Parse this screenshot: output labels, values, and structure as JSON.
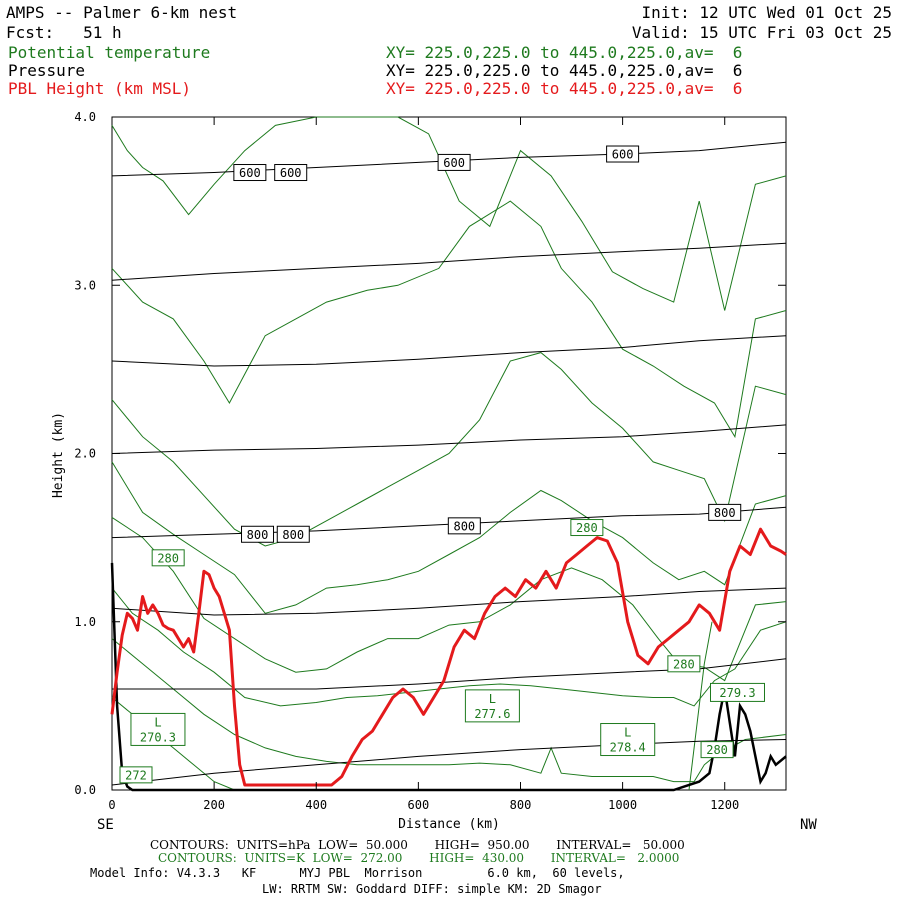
{
  "header": {
    "title": "AMPS -- Palmer 6-km nest",
    "forecast": "Fcst:   51 h",
    "init": "Init: 12 UTC Wed 01 Oct 25",
    "valid": "Valid: 15 UTC Fri 03 Oct 25",
    "fields": [
      {
        "name": "Potential temperature",
        "xy": "XY= 225.0,225.0 to 445.0,225.0,av=  6",
        "color": "#1e7a1e"
      },
      {
        "name": "Pressure",
        "xy": "XY= 225.0,225.0 to 445.0,225.0,av=  6",
        "color": "#000000"
      },
      {
        "name": "PBL Height (km MSL)",
        "xy": "XY= 225.0,225.0 to 445.0,225.0,av=  6",
        "color": "#e41a1c"
      }
    ]
  },
  "footer": {
    "line1": "CONTOURS:  UNITS=hPa  LOW=  50.000       HIGH=  950.00       INTERVAL=   50.000",
    "line2": "CONTOURS:  UNITS=K  LOW=  272.00       HIGH=  430.00       INTERVAL=   2.0000",
    "line3": "Model Info: V4.3.3   KF      MYJ PBL  Morrison         6.0 km,  60 levels,",
    "line4": "LW: RRTM SW: Goddard DIFF: simple KM: 2D Smagor"
  },
  "chart_data": {
    "type": "line",
    "xlabel": "Distance (km)",
    "ylabel": "Height (km)",
    "xlim": [
      0,
      1320
    ],
    "ylim": [
      0.0,
      4.0
    ],
    "x_ticks": [
      0,
      200,
      400,
      600,
      800,
      1000,
      1200
    ],
    "x_tick_labels": [
      "0",
      "200",
      "400",
      "600",
      "800",
      "1000",
      "1200"
    ],
    "y_ticks": [
      0.0,
      1.0,
      2.0,
      3.0,
      4.0
    ],
    "y_tick_labels": [
      "0.0",
      "1.0",
      "2.0",
      "3.0",
      "4.0"
    ],
    "left_end_label": "SE",
    "right_end_label": "NW",
    "colors": {
      "pressure": "#000000",
      "theta": "#1e7a1e",
      "pbl": "#e41a1c",
      "terrain": "#000000"
    },
    "pressure_isobars": [
      {
        "x": [
          0,
          200,
          400,
          600,
          800,
          1000,
          1150,
          1320
        ],
        "y": [
          0.03,
          0.1,
          0.15,
          0.2,
          0.24,
          0.27,
          0.29,
          0.3
        ]
      },
      {
        "x": [
          0,
          200,
          400,
          600,
          800,
          1000,
          1150,
          1320
        ],
        "y": [
          0.6,
          0.6,
          0.6,
          0.63,
          0.67,
          0.7,
          0.72,
          0.78
        ]
      },
      {
        "x": [
          0,
          200,
          400,
          600,
          800,
          1000,
          1150,
          1320
        ],
        "y": [
          1.08,
          1.04,
          1.05,
          1.08,
          1.12,
          1.15,
          1.18,
          1.2
        ]
      },
      {
        "x": [
          0,
          200,
          400,
          600,
          800,
          1000,
          1150,
          1320
        ],
        "y": [
          1.5,
          1.52,
          1.54,
          1.57,
          1.6,
          1.63,
          1.64,
          1.68
        ]
      },
      {
        "x": [
          0,
          200,
          400,
          600,
          800,
          1000,
          1150,
          1320
        ],
        "y": [
          2.0,
          2.02,
          2.03,
          2.05,
          2.08,
          2.1,
          2.13,
          2.17
        ]
      },
      {
        "x": [
          0,
          200,
          400,
          600,
          800,
          1000,
          1150,
          1320
        ],
        "y": [
          2.55,
          2.52,
          2.53,
          2.56,
          2.6,
          2.63,
          2.67,
          2.7
        ]
      },
      {
        "x": [
          0,
          200,
          400,
          600,
          800,
          1000,
          1150,
          1320
        ],
        "y": [
          3.03,
          3.07,
          3.1,
          3.13,
          3.17,
          3.2,
          3.22,
          3.25
        ]
      },
      {
        "x": [
          0,
          200,
          400,
          600,
          800,
          1000,
          1150,
          1320
        ],
        "y": [
          3.65,
          3.67,
          3.7,
          3.73,
          3.76,
          3.78,
          3.8,
          3.85
        ]
      }
    ],
    "pressure_labels": [
      {
        "text": "600",
        "x": 270,
        "y": 3.67
      },
      {
        "text": "600",
        "x": 350,
        "y": 3.67
      },
      {
        "text": "600",
        "x": 670,
        "y": 3.73
      },
      {
        "text": "600",
        "x": 1000,
        "y": 3.78
      },
      {
        "text": "800",
        "x": 285,
        "y": 1.52
      },
      {
        "text": "800",
        "x": 355,
        "y": 1.52
      },
      {
        "text": "800",
        "x": 690,
        "y": 1.57
      },
      {
        "text": "800",
        "x": 1200,
        "y": 1.65
      }
    ],
    "theta_isentropes": [
      {
        "x": [
          0,
          30,
          60,
          100,
          150,
          200,
          260,
          320,
          400,
          480,
          560,
          620,
          680,
          740,
          800,
          860,
          920,
          980,
          1040,
          1100,
          1150,
          1200,
          1260,
          1320
        ],
        "y": [
          3.95,
          3.8,
          3.7,
          3.62,
          3.42,
          3.6,
          3.8,
          3.95,
          4.0,
          4.0,
          4.0,
          3.9,
          3.5,
          3.35,
          3.8,
          3.65,
          3.38,
          3.08,
          2.98,
          2.9,
          3.5,
          2.85,
          3.6,
          3.65
        ]
      },
      {
        "x": [
          0,
          60,
          120,
          180,
          230,
          300,
          360,
          420,
          500,
          560,
          640,
          700,
          780,
          840,
          880,
          940,
          1000,
          1060,
          1120,
          1180,
          1220,
          1260,
          1320
        ],
        "y": [
          3.1,
          2.9,
          2.8,
          2.55,
          2.3,
          2.7,
          2.8,
          2.9,
          2.97,
          3.0,
          3.1,
          3.35,
          3.5,
          3.35,
          3.1,
          2.9,
          2.62,
          2.52,
          2.4,
          2.3,
          2.1,
          2.8,
          2.85
        ]
      },
      {
        "x": [
          0,
          60,
          120,
          180,
          240,
          300,
          360,
          420,
          480,
          540,
          600,
          660,
          720,
          780,
          840,
          880,
          940,
          1000,
          1060,
          1110,
          1160,
          1200,
          1260,
          1320
        ],
        "y": [
          2.32,
          2.1,
          1.95,
          1.75,
          1.55,
          1.45,
          1.5,
          1.6,
          1.7,
          1.8,
          1.9,
          2.0,
          2.2,
          2.55,
          2.6,
          2.5,
          2.3,
          2.15,
          1.95,
          1.9,
          1.85,
          1.6,
          2.4,
          2.35
        ]
      },
      {
        "x": [
          0,
          60,
          120,
          180,
          240,
          300,
          360,
          420,
          480,
          540,
          600,
          660,
          720,
          780,
          840,
          880,
          940,
          1000,
          1060,
          1110,
          1160,
          1200,
          1260,
          1320
        ],
        "y": [
          1.95,
          1.65,
          1.52,
          1.4,
          1.28,
          1.05,
          1.1,
          1.2,
          1.22,
          1.25,
          1.3,
          1.4,
          1.5,
          1.65,
          1.78,
          1.72,
          1.6,
          1.5,
          1.35,
          1.25,
          1.3,
          1.22,
          1.7,
          1.75
        ]
      },
      {
        "x": [
          0,
          60,
          120,
          180,
          240,
          300,
          360,
          420,
          480,
          540,
          600,
          660,
          720,
          780,
          840,
          900,
          960,
          1020,
          1070,
          1110,
          1160,
          1200,
          1260,
          1320
        ],
        "y": [
          1.62,
          1.5,
          1.3,
          1.02,
          0.9,
          0.78,
          0.7,
          0.72,
          0.82,
          0.9,
          0.9,
          0.98,
          1.0,
          1.1,
          1.25,
          1.32,
          1.25,
          1.1,
          0.9,
          0.75,
          0.73,
          0.65,
          1.1,
          1.12
        ]
      },
      {
        "x": [
          0,
          40,
          90,
          140,
          200,
          260,
          330,
          400,
          460,
          520,
          580,
          640,
          700,
          760,
          820,
          880,
          940,
          1000,
          1060,
          1100,
          1140,
          1180,
          1220,
          1270,
          1320
        ],
        "y": [
          1.2,
          1.05,
          0.95,
          0.82,
          0.7,
          0.55,
          0.5,
          0.52,
          0.55,
          0.56,
          0.58,
          0.6,
          0.62,
          0.63,
          0.62,
          0.6,
          0.58,
          0.56,
          0.55,
          0.55,
          0.5,
          0.65,
          0.72,
          0.95,
          1.0
        ]
      },
      {
        "x": [
          0,
          60,
          120,
          180,
          240,
          300,
          360,
          420,
          480,
          540,
          600,
          660,
          720,
          780,
          840,
          860,
          880,
          940,
          1000,
          1060,
          1100,
          1140,
          1160,
          1180,
          1240,
          1320
        ],
        "y": [
          0.9,
          0.75,
          0.6,
          0.45,
          0.33,
          0.25,
          0.2,
          0.17,
          0.15,
          0.15,
          0.15,
          0.15,
          0.16,
          0.15,
          0.1,
          0.25,
          0.1,
          0.08,
          0.08,
          0.08,
          0.05,
          0.05,
          0.15,
          0.2,
          0.3,
          0.33
        ]
      },
      {
        "x": [
          0,
          40,
          80,
          120,
          160,
          200,
          240
        ],
        "y": [
          0.55,
          0.45,
          0.35,
          0.25,
          0.15,
          0.05,
          0.0
        ]
      },
      {
        "x": [
          1130,
          1140,
          1150,
          1160,
          1175
        ],
        "y": [
          0.0,
          0.25,
          0.5,
          0.75,
          1.0
        ]
      }
    ],
    "theta_labels": [
      {
        "text": "280",
        "x": 110,
        "y": 1.38
      },
      {
        "text": "280",
        "x": 930,
        "y": 1.56
      },
      {
        "text": "280",
        "x": 1120,
        "y": 0.75
      },
      {
        "text": "280",
        "x": 1185,
        "y": 0.24
      },
      {
        "text": "272",
        "x": 47,
        "y": 0.09
      }
    ],
    "low_centers": [
      {
        "text": "L",
        "value": "270.3",
        "x": 90,
        "y": 0.36
      },
      {
        "text": "L",
        "value": "277.6",
        "x": 745,
        "y": 0.5
      },
      {
        "text": "L",
        "value": "278.4",
        "x": 1010,
        "y": 0.3
      },
      {
        "text": "",
        "value": "279.3",
        "x": 1225,
        "y": 0.58
      }
    ],
    "pbl_height": {
      "x": [
        0,
        10,
        20,
        30,
        40,
        50,
        60,
        70,
        80,
        90,
        100,
        110,
        120,
        130,
        140,
        150,
        160,
        170,
        180,
        190,
        200,
        210,
        220,
        230,
        240,
        250,
        260,
        270,
        290,
        320,
        360,
        400,
        430,
        450,
        470,
        490,
        510,
        530,
        550,
        570,
        590,
        610,
        630,
        650,
        670,
        690,
        710,
        730,
        750,
        770,
        790,
        810,
        830,
        850,
        870,
        890,
        910,
        930,
        950,
        970,
        990,
        1010,
        1030,
        1050,
        1070,
        1090,
        1110,
        1130,
        1150,
        1170,
        1190,
        1210,
        1230,
        1250,
        1270,
        1290,
        1310,
        1320
      ],
      "y": [
        0.45,
        0.7,
        0.92,
        1.05,
        1.02,
        0.95,
        1.15,
        1.05,
        1.1,
        1.05,
        0.98,
        0.96,
        0.95,
        0.9,
        0.85,
        0.9,
        0.82,
        1.05,
        1.3,
        1.28,
        1.2,
        1.15,
        1.05,
        0.95,
        0.5,
        0.15,
        0.03,
        0.03,
        0.03,
        0.03,
        0.03,
        0.03,
        0.03,
        0.08,
        0.2,
        0.3,
        0.35,
        0.45,
        0.55,
        0.6,
        0.55,
        0.45,
        0.55,
        0.65,
        0.85,
        0.95,
        0.9,
        1.05,
        1.15,
        1.2,
        1.15,
        1.25,
        1.2,
        1.3,
        1.2,
        1.35,
        1.4,
        1.45,
        1.5,
        1.48,
        1.35,
        1.0,
        0.8,
        0.75,
        0.85,
        0.9,
        0.95,
        1.0,
        1.1,
        1.05,
        0.95,
        1.3,
        1.45,
        1.4,
        1.55,
        1.45,
        1.42,
        1.4
      ]
    },
    "terrain": {
      "x": [
        0,
        10,
        20,
        30,
        40,
        60,
        100,
        200,
        400,
        600,
        800,
        1000,
        1100,
        1150,
        1170,
        1180,
        1190,
        1200,
        1210,
        1220,
        1230,
        1240,
        1250,
        1260,
        1270,
        1280,
        1290,
        1300,
        1320
      ],
      "y": [
        1.35,
        0.5,
        0.1,
        0.02,
        0.0,
        0.0,
        0.0,
        0.0,
        0.0,
        0.0,
        0.0,
        0.0,
        0.0,
        0.05,
        0.1,
        0.25,
        0.45,
        0.6,
        0.4,
        0.2,
        0.5,
        0.45,
        0.35,
        0.2,
        0.05,
        0.1,
        0.2,
        0.15,
        0.2
      ]
    }
  }
}
